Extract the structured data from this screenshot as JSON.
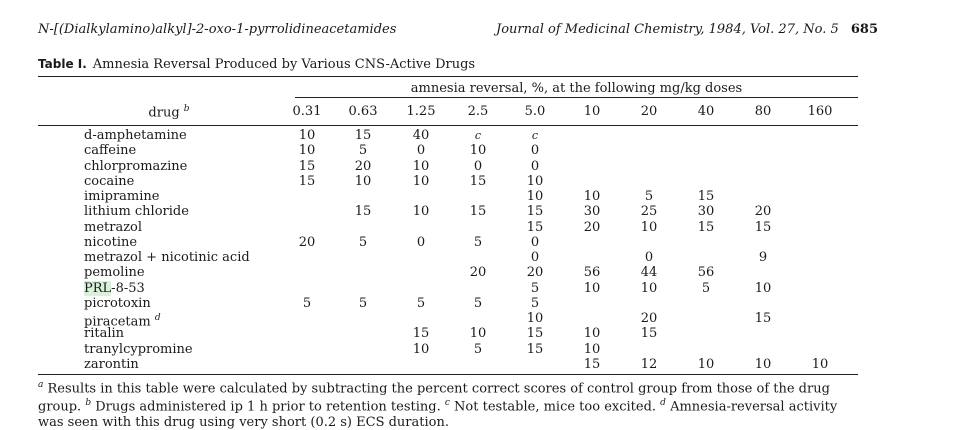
{
  "header": {
    "running_title": "N-[(Dialkylamino)alkyl]-2-oxo-1-pyrrolidineacetamides",
    "journal": "Journal of Medicinal Chemistry, 1984, Vol. 27, No. 5",
    "page": "685"
  },
  "table": {
    "label": "Table I.",
    "title": "Amnesia Reversal Produced by Various CNS-Active Drugs",
    "spanner": "amnesia reversal, %, at the following mg/kg doses",
    "drug_header": "drug",
    "drug_header_note": "b",
    "doses": [
      "0.31",
      "0.63",
      "1.25",
      "2.5",
      "5.0",
      "10",
      "20",
      "40",
      "80",
      "160"
    ],
    "rows": [
      {
        "drug": "d-amphetamine",
        "values": [
          "10",
          "15",
          "40",
          "c",
          "c",
          "",
          "",
          "",
          "",
          ""
        ]
      },
      {
        "drug": "caffeine",
        "values": [
          "10",
          "5",
          "0",
          "10",
          "0",
          "",
          "",
          "",
          "",
          ""
        ]
      },
      {
        "drug": "chlorpromazine",
        "values": [
          "15",
          "20",
          "10",
          "0",
          "0",
          "",
          "",
          "",
          "",
          ""
        ]
      },
      {
        "drug": "cocaine",
        "values": [
          "15",
          "10",
          "10",
          "15",
          "10",
          "",
          "",
          "",
          "",
          ""
        ]
      },
      {
        "drug": "imipramine",
        "values": [
          "",
          "",
          "",
          "",
          "10",
          "10",
          "5",
          "15",
          "",
          ""
        ]
      },
      {
        "drug": "lithium chloride",
        "values": [
          "",
          "15",
          "10",
          "15",
          "15",
          "30",
          "25",
          "30",
          "20",
          ""
        ]
      },
      {
        "drug": "metrazol",
        "values": [
          "",
          "",
          "",
          "",
          "15",
          "20",
          "10",
          "15",
          "15",
          ""
        ]
      },
      {
        "drug": "nicotine",
        "values": [
          "20",
          "5",
          "0",
          "5",
          "0",
          "",
          "",
          "",
          "",
          ""
        ]
      },
      {
        "drug": "metrazol + nicotinic acid",
        "values": [
          "",
          "",
          "",
          "",
          "0",
          "",
          "0",
          "",
          "9",
          ""
        ]
      },
      {
        "drug": "pemoline",
        "values": [
          "",
          "",
          "",
          "20",
          "20",
          "56",
          "44",
          "56",
          "",
          ""
        ]
      },
      {
        "drug_parts": [
          "PRL",
          "-8-53"
        ],
        "values": [
          "",
          "",
          "",
          "",
          "5",
          "10",
          "10",
          "5",
          "10",
          ""
        ]
      },
      {
        "drug": "picrotoxin",
        "values": [
          "5",
          "5",
          "5",
          "5",
          "5",
          "",
          "",
          "",
          "",
          ""
        ]
      },
      {
        "drug": "piracetam",
        "note": "d",
        "values": [
          "",
          "",
          "",
          "",
          "10",
          "",
          "20",
          "",
          "15",
          ""
        ]
      },
      {
        "drug": "ritalin",
        "values": [
          "",
          "",
          "15",
          "10",
          "15",
          "10",
          "15",
          "",
          "",
          ""
        ]
      },
      {
        "drug": "tranylcypromine",
        "values": [
          "",
          "",
          "10",
          "5",
          "15",
          "10",
          "",
          "",
          "",
          ""
        ]
      },
      {
        "drug": "zarontin",
        "values": [
          "",
          "",
          "",
          "",
          "",
          "15",
          "12",
          "10",
          "10",
          "10"
        ]
      }
    ],
    "footnotes": [
      {
        "mark": "a",
        "text": "Results in this table were calculated by subtracting the percent correct scores of control group from those of the drug group."
      },
      {
        "mark": "b",
        "text": "Drugs administered ip 1 h prior to retention testing."
      },
      {
        "mark": "c",
        "text": "Not testable, mice too excited."
      },
      {
        "mark": "d",
        "text": "Amnesia-reversal activity was seen with this drug using very short (0.2 s) ECS duration."
      }
    ]
  }
}
